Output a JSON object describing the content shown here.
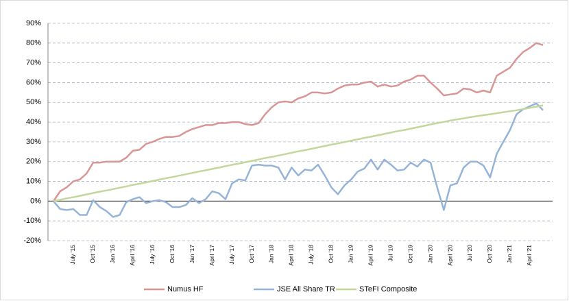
{
  "chart_data": {
    "type": "line",
    "categories": [
      null,
      null,
      null,
      "July '15",
      null,
      null,
      "Oct '15",
      null,
      null,
      "Jan '16",
      null,
      null,
      "April '16",
      null,
      null,
      "July '16",
      null,
      null,
      "Oct '16",
      null,
      null,
      "Jan '17",
      null,
      null,
      "April '17",
      null,
      null,
      "July '17",
      null,
      null,
      "Oct '17",
      null,
      null,
      "Jan '18",
      null,
      null,
      "April '18",
      null,
      null,
      "July '18",
      null,
      null,
      "Oct '18",
      null,
      null,
      "Jan '19",
      null,
      null,
      "April '19",
      null,
      null,
      "Jul '19",
      null,
      null,
      "Oct '19",
      null,
      null,
      "Jan '20",
      null,
      null,
      "April '20",
      null,
      null,
      "Jul '20",
      null,
      null,
      "Oct '20",
      null,
      null,
      "Jan '21",
      null,
      null,
      "April '21",
      null,
      null
    ],
    "series": [
      {
        "name": "Numus HF",
        "color": "#d99594",
        "values": [
          0,
          5,
          7,
          10,
          11,
          14,
          19.5,
          19.5,
          20,
          20,
          20,
          22,
          25.5,
          26,
          29,
          30,
          31.5,
          32.5,
          32.5,
          33,
          35,
          36.5,
          37.5,
          38.5,
          38.5,
          39.5,
          39.5,
          40,
          40,
          39,
          38.5,
          39.5,
          44,
          47.5,
          50,
          50.5,
          50,
          52,
          53,
          55,
          55,
          54.5,
          55,
          57,
          58.5,
          59,
          59,
          60,
          60.5,
          58,
          59,
          58,
          58.5,
          60.5,
          61.5,
          63.5,
          63.5,
          60,
          57,
          53.5,
          54,
          54.5,
          57,
          56.5,
          55,
          56,
          55,
          63.5,
          65.5,
          67.5,
          72,
          75.5,
          77.5,
          80,
          79
        ]
      },
      {
        "name": "JSE All Share TR",
        "color": "#95b3d7",
        "values": [
          0,
          -4,
          -4.5,
          -4,
          -7,
          -7,
          0.5,
          -3,
          -5,
          -8,
          -7,
          -0.5,
          1,
          2,
          -1,
          0,
          0.5,
          -0.5,
          -3,
          -3,
          -2,
          1.5,
          -1,
          1,
          5,
          4,
          1,
          9,
          11,
          10.5,
          18,
          18.5,
          18,
          18,
          17,
          11,
          17,
          13,
          16,
          15.5,
          18.5,
          13,
          7,
          3.5,
          8,
          11,
          15,
          16.5,
          21,
          16,
          21,
          18.5,
          15.5,
          16,
          19.5,
          17.5,
          21,
          19.5,
          7,
          -4.5,
          8,
          9,
          17,
          20,
          20,
          18,
          12,
          24,
          30,
          36,
          44,
          46.5,
          48,
          49.5,
          46
        ]
      },
      {
        "name": "STeFI Composite",
        "color": "#c3d69b",
        "values": [
          0,
          0.7,
          1.4,
          2.0,
          2.7,
          3.4,
          4.1,
          4.8,
          5.4,
          6.1,
          6.8,
          7.5,
          8.2,
          8.8,
          9.5,
          10.2,
          10.9,
          11.6,
          12.2,
          12.9,
          13.6,
          14.3,
          15.0,
          15.6,
          16.3,
          17.0,
          17.7,
          18.4,
          19.0,
          19.7,
          20.4,
          21.1,
          21.8,
          22.4,
          23.1,
          23.8,
          24.5,
          25.2,
          25.8,
          26.5,
          27.2,
          27.9,
          28.6,
          29.2,
          29.9,
          30.6,
          31.3,
          32.0,
          32.6,
          33.3,
          34.0,
          34.7,
          35.4,
          36.0,
          36.7,
          37.4,
          38.1,
          38.8,
          39.5,
          40.1,
          40.8,
          41.4,
          41.9,
          42.5,
          43.0,
          43.5,
          44.0,
          44.5,
          45.0,
          45.5,
          46.0,
          46.6,
          47.2,
          47.8,
          48.5
        ]
      }
    ],
    "ylim": [
      -20,
      90
    ],
    "yticks": [
      {
        "value": -20,
        "label": "-20%"
      },
      {
        "value": -10,
        "label": "-10%"
      },
      {
        "value": 0,
        "label": "0%"
      },
      {
        "value": 10,
        "label": "10%"
      },
      {
        "value": 20,
        "label": "20%"
      },
      {
        "value": 30,
        "label": "30%"
      },
      {
        "value": 40,
        "label": "40%"
      },
      {
        "value": 50,
        "label": "50%"
      },
      {
        "value": 60,
        "label": "60%"
      },
      {
        "value": 70,
        "label": "70%"
      },
      {
        "value": 80,
        "label": "80%"
      },
      {
        "value": 90,
        "label": "90%"
      }
    ],
    "grid": true,
    "legend": "bottom"
  }
}
